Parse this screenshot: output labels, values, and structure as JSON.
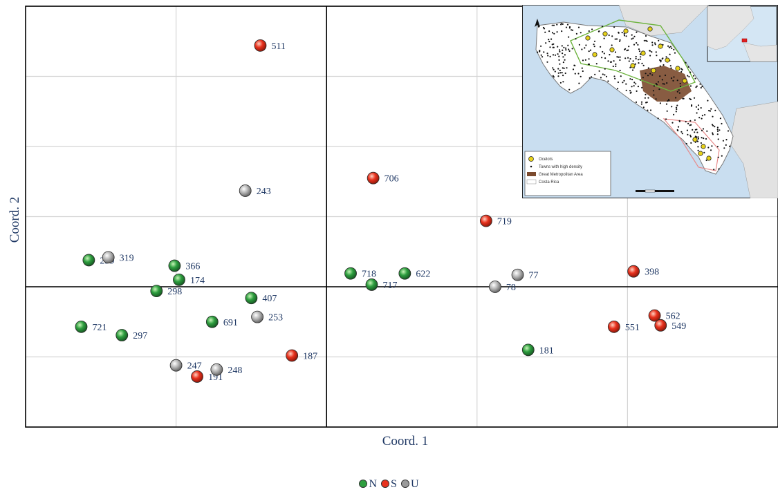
{
  "chart_data": {
    "type": "scatter",
    "title": "",
    "xlabel": "Coord. 1",
    "ylabel": "Coord. 2",
    "xlim": [
      -0.2,
      0.3
    ],
    "ylim": [
      -0.2,
      0.4
    ],
    "grid": true,
    "legend_position": "bottom-center",
    "colors": {
      "N": "#2e9e3f",
      "S": "#e8321e",
      "U": "#9a9a9a"
    },
    "series": [
      {
        "name": "N",
        "points": [
          {
            "label": "299",
            "x": -0.158,
            "y": 0.038
          },
          {
            "label": "366",
            "x": -0.101,
            "y": 0.03
          },
          {
            "label": "174",
            "x": -0.098,
            "y": 0.01
          },
          {
            "label": "298",
            "x": -0.113,
            "y": -0.006
          },
          {
            "label": "407",
            "x": -0.05,
            "y": -0.016
          },
          {
            "label": "691",
            "x": -0.076,
            "y": -0.05
          },
          {
            "label": "721",
            "x": -0.163,
            "y": -0.057
          },
          {
            "label": "297",
            "x": -0.136,
            "y": -0.069
          },
          {
            "label": "718",
            "x": 0.016,
            "y": 0.019
          },
          {
            "label": "622",
            "x": 0.052,
            "y": 0.019
          },
          {
            "label": "717",
            "x": 0.03,
            "y": 0.003
          },
          {
            "label": "181",
            "x": 0.134,
            "y": -0.09
          }
        ]
      },
      {
        "name": "S",
        "points": [
          {
            "label": "511",
            "x": -0.044,
            "y": 0.344
          },
          {
            "label": "706",
            "x": 0.031,
            "y": 0.155
          },
          {
            "label": "719",
            "x": 0.106,
            "y": 0.094
          },
          {
            "label": "398",
            "x": 0.204,
            "y": 0.022
          },
          {
            "label": "562",
            "x": 0.218,
            "y": -0.041
          },
          {
            "label": "549",
            "x": 0.222,
            "y": -0.055
          },
          {
            "label": "551",
            "x": 0.191,
            "y": -0.057
          },
          {
            "label": "187",
            "x": -0.023,
            "y": -0.098
          },
          {
            "label": "191",
            "x": -0.086,
            "y": -0.128
          }
        ]
      },
      {
        "name": "U",
        "points": [
          {
            "label": "319",
            "x": -0.145,
            "y": 0.042
          },
          {
            "label": "243",
            "x": -0.054,
            "y": 0.137
          },
          {
            "label": "77",
            "x": 0.127,
            "y": 0.017
          },
          {
            "label": "78",
            "x": 0.112,
            "y": 0.0
          },
          {
            "label": "253",
            "x": -0.046,
            "y": -0.043
          },
          {
            "label": "247",
            "x": -0.1,
            "y": -0.112
          },
          {
            "label": "248",
            "x": -0.073,
            "y": -0.118
          }
        ]
      }
    ]
  },
  "inset_map": {
    "legend": {
      "ocelots": "Ocelots",
      "towns": "Towns with high density",
      "metro": "Great Metropolitan Area",
      "country": "Costa Rica"
    }
  }
}
